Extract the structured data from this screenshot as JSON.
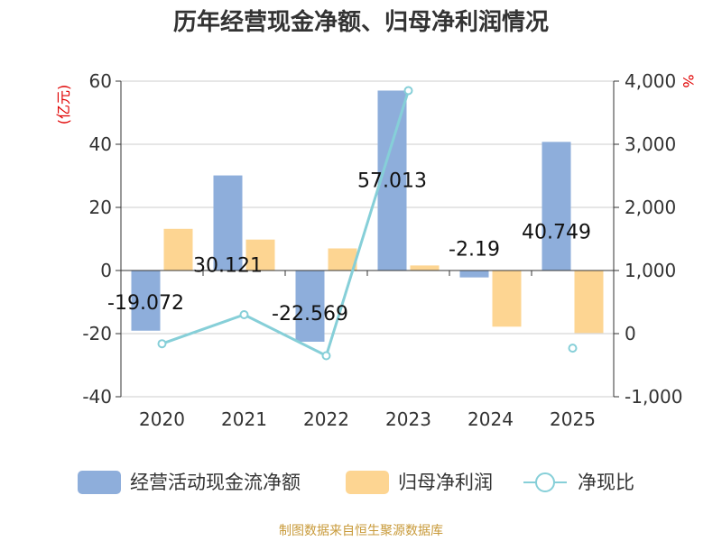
{
  "chart_data": {
    "type": "bar",
    "title": "历年经营现金净额、归母净利润情况",
    "categories": [
      "2020",
      "2021",
      "2022",
      "2023",
      "2024",
      "2025"
    ],
    "series": [
      {
        "name": "经营活动现金流净额",
        "type": "bar",
        "axis": "left",
        "color": "#8eaedb",
        "values": [
          -19.072,
          30.121,
          -22.569,
          57.013,
          -2.19,
          40.749
        ],
        "labels": [
          "-19.072",
          "30.121",
          "-22.569",
          "57.013",
          "-2.19",
          "40.749"
        ]
      },
      {
        "name": "归母净利润",
        "type": "bar",
        "axis": "left",
        "color": "#fdd592",
        "values": [
          13.2,
          9.8,
          7.0,
          1.6,
          -17.8,
          -19.8
        ]
      },
      {
        "name": "净现比",
        "type": "line",
        "axis": "right",
        "color": "#86cfd8",
        "values": [
          -160,
          300,
          -350,
          3850,
          null,
          -230
        ]
      }
    ],
    "y_left": {
      "unit": "(亿元)",
      "ylim": [
        -40,
        60
      ],
      "ticks": [
        "-40",
        "-20",
        "0",
        "20",
        "40",
        "60"
      ]
    },
    "y_right": {
      "unit": "%",
      "ylim": [
        -1000,
        4000
      ],
      "ticks": [
        "-1,000",
        "0",
        "1,000",
        "2,000",
        "3,000",
        "4,000"
      ]
    },
    "grid": true,
    "legend_position": "bottom",
    "source": "制图数据来自恒生聚源数据库"
  }
}
